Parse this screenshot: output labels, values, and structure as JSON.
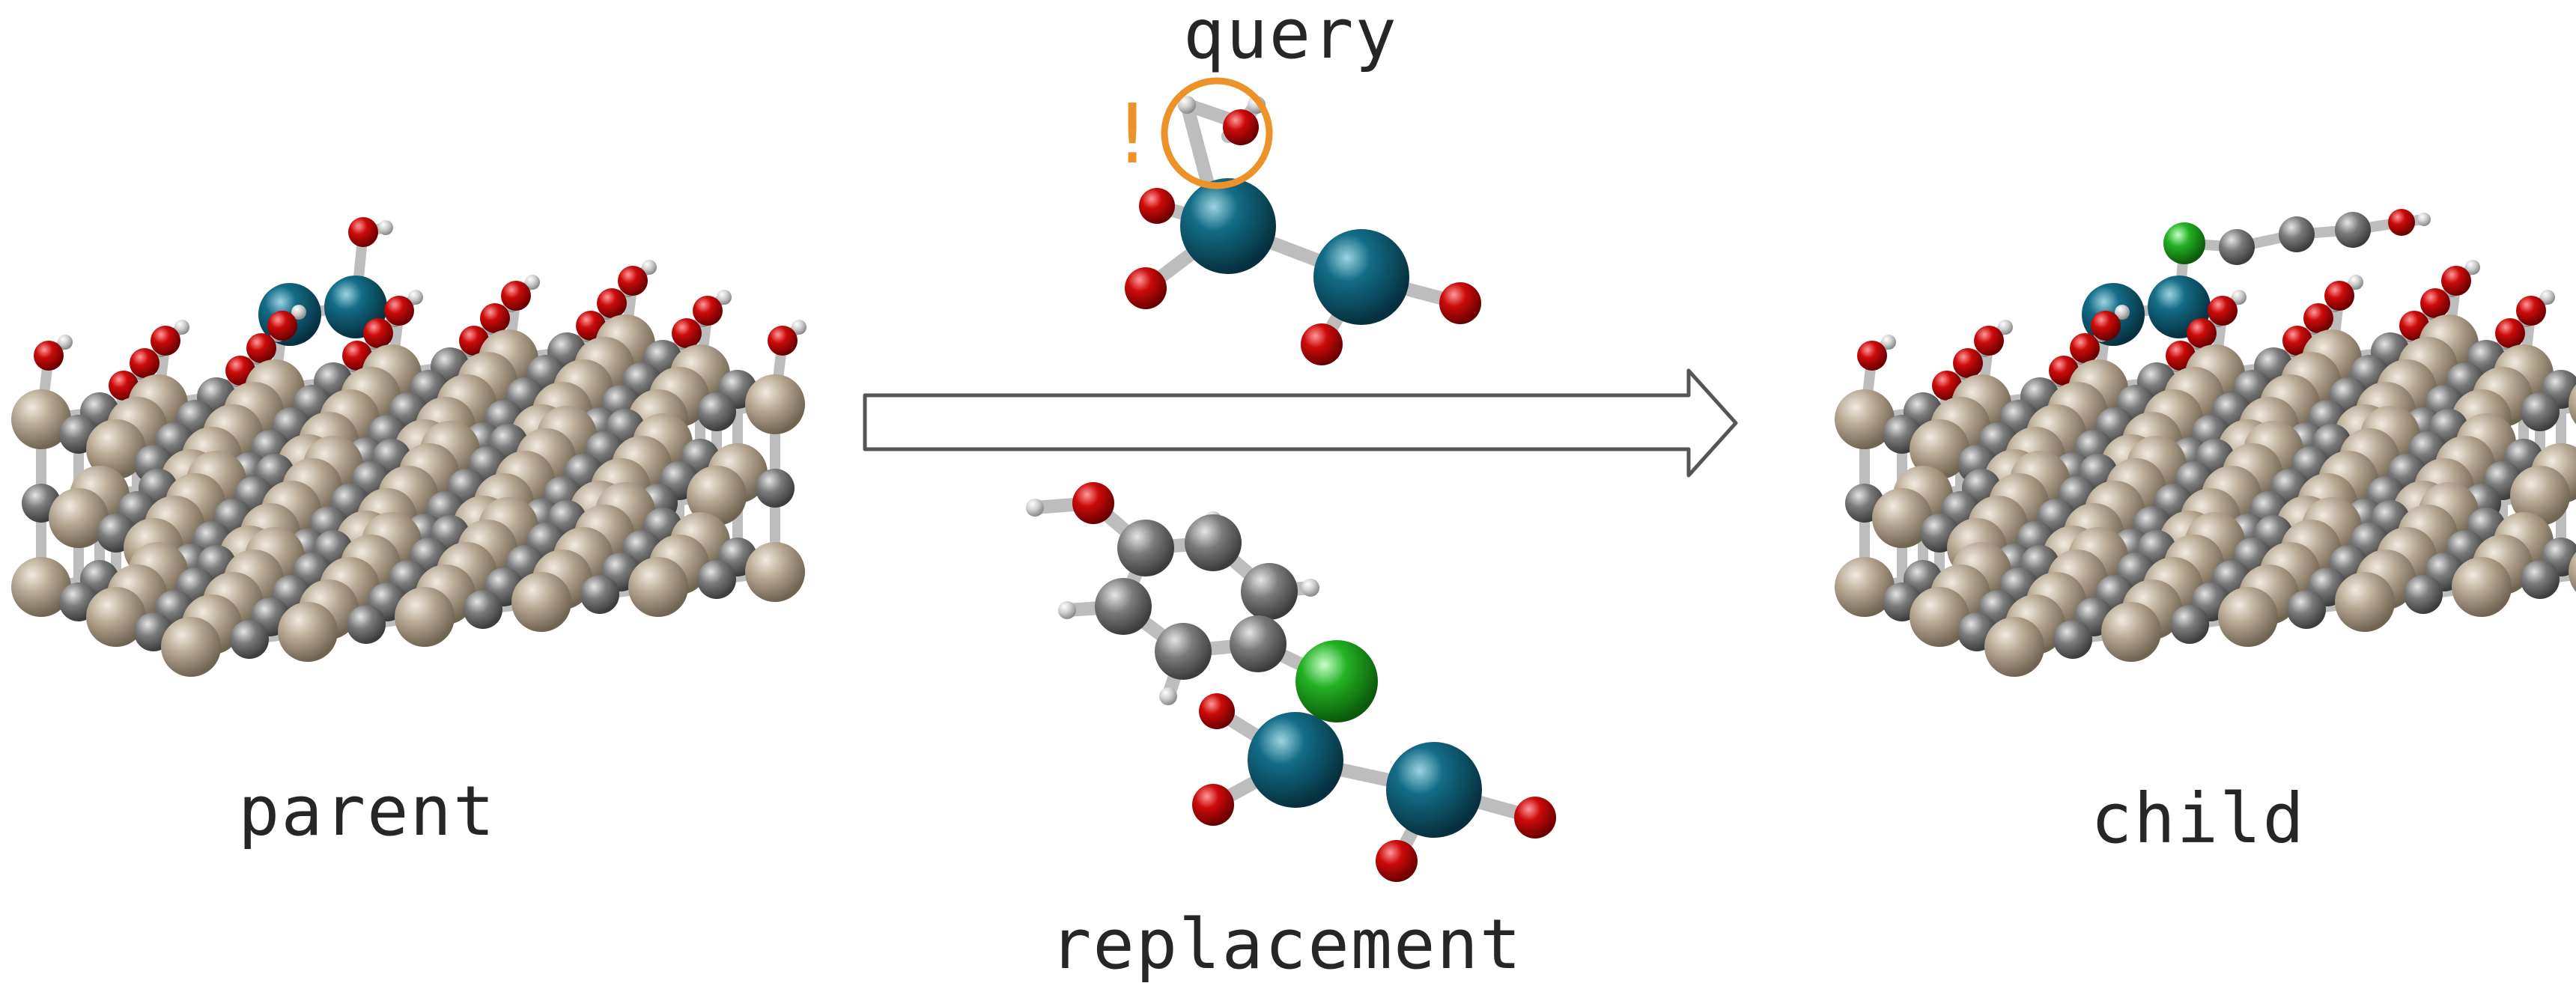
{
  "labels": {
    "query": "query",
    "parent": "parent",
    "replacement": "replacement",
    "child": "child"
  },
  "alert_mark": "!",
  "colors": {
    "oxygen": "#c4080c",
    "hydrogen": "#d4d4d4",
    "carbon": "#6e6e6e",
    "chlorine": "#22b022",
    "metal": "#0f5f78",
    "substrate": "#a89880",
    "bond": "#bdbdbd",
    "highlight": "#ec9228",
    "arrow": "#555555",
    "text": "#262626"
  },
  "icons": [
    "reaction-arrow-icon",
    "highlight-circle-icon"
  ]
}
